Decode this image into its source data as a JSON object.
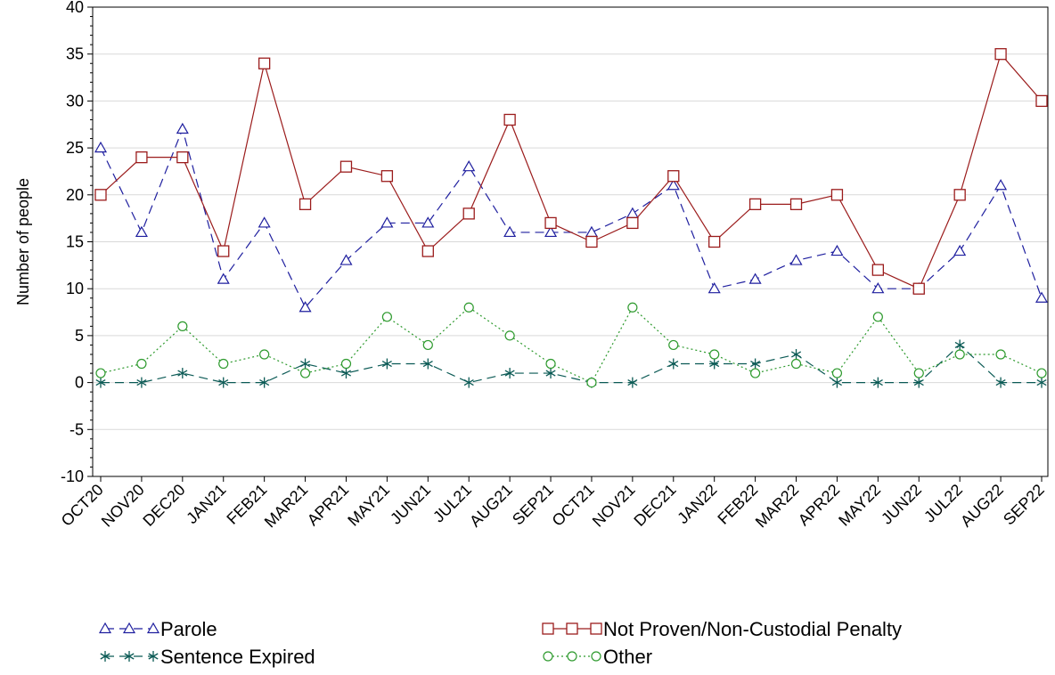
{
  "chart_data": {
    "type": "line",
    "title": "",
    "xlabel": "",
    "ylabel": "Number of people",
    "ylim": [
      -10,
      40
    ],
    "yticks": [
      -10,
      -5,
      0,
      5,
      10,
      15,
      20,
      25,
      30,
      35,
      40
    ],
    "grid": true,
    "legend_position": "bottom",
    "categories": [
      "OCT20",
      "NOV20",
      "DEC20",
      "JAN21",
      "FEB21",
      "MAR21",
      "APR21",
      "MAY21",
      "JUN21",
      "JUL21",
      "AUG21",
      "SEP21",
      "OCT21",
      "NOV21",
      "DEC21",
      "JAN22",
      "FEB22",
      "MAR22",
      "APR22",
      "MAY22",
      "JUN22",
      "JUL22",
      "AUG22",
      "SEP22"
    ],
    "series": [
      {
        "name": "Parole",
        "color": "#1f1f9f",
        "marker": "triangle",
        "dash": "dashed",
        "values": [
          25,
          16,
          27,
          11,
          17,
          8,
          13,
          17,
          17,
          23,
          16,
          16,
          16,
          18,
          21,
          10,
          11,
          13,
          14,
          10,
          10,
          14,
          21,
          9
        ]
      },
      {
        "name": "Not Proven/Non-Custodial Penalty",
        "color": "#9b1c1c",
        "marker": "square",
        "dash": "solid",
        "values": [
          20,
          24,
          24,
          14,
          34,
          19,
          23,
          22,
          14,
          18,
          28,
          17,
          15,
          17,
          22,
          15,
          19,
          19,
          20,
          12,
          10,
          20,
          35,
          30
        ]
      },
      {
        "name": "Sentence Expired",
        "color": "#0b5a55",
        "marker": "star",
        "dash": "dashed",
        "values": [
          0,
          0,
          1,
          0,
          0,
          2,
          1,
          2,
          2,
          0,
          1,
          1,
          0,
          0,
          2,
          2,
          2,
          3,
          0,
          0,
          0,
          4,
          0,
          0
        ]
      },
      {
        "name": "Other",
        "color": "#2e9a2e",
        "marker": "circle",
        "dash": "dotted",
        "values": [
          1,
          2,
          6,
          2,
          3,
          1,
          2,
          7,
          4,
          8,
          5,
          2,
          0,
          8,
          4,
          3,
          1,
          2,
          1,
          7,
          1,
          3,
          3,
          1
        ]
      }
    ]
  }
}
